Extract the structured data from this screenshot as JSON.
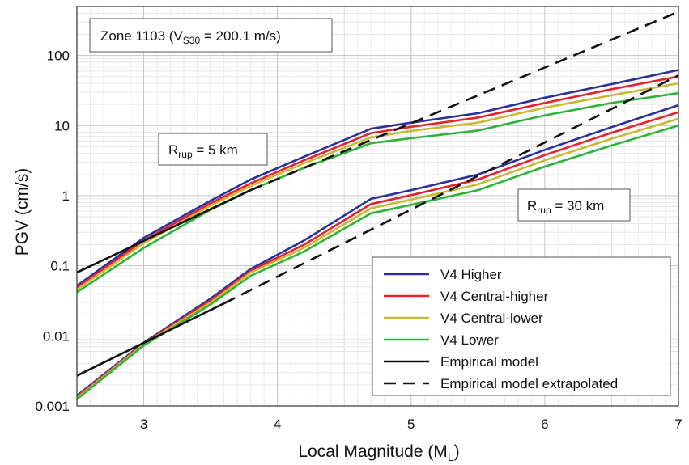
{
  "chart_data": {
    "type": "line",
    "xlabel": "Local Magnitude (M",
    "xlabel_sub": "L",
    "xlabel_tail": ")",
    "ylabel": "PGV (cm/s)",
    "xlim": [
      2.5,
      7
    ],
    "ylim": [
      0.001,
      500
    ],
    "yscale": "log",
    "grid": true,
    "legend_position": "bottom-right",
    "x_ticks": [
      "3",
      "4",
      "5",
      "6",
      "7"
    ],
    "y_ticks": [
      "0.001",
      "0.01",
      "0.1",
      "1",
      "10",
      "100"
    ],
    "annotations": {
      "zone_prefix": "Zone 1103 (V",
      "zone_sub": "S30",
      "zone_suffix": " = 200.1 m/s)",
      "r5_prefix": "R",
      "r5_sub": "rup",
      "r5_suffix": " = 5 km",
      "r30_prefix": "R",
      "r30_sub": "rup",
      "r30_suffix": " = 30 km"
    },
    "series": [
      {
        "name": "V4 Higher",
        "color": "#2b2f9e",
        "style": "solid",
        "curves": [
          {
            "group": "Rrup = 5 km",
            "x": [
              2.5,
              3.0,
              3.5,
              3.8,
              4.2,
              4.7,
              5.0,
              5.5,
              6.0,
              6.5,
              7.0
            ],
            "y": [
              0.052,
              0.25,
              0.85,
              1.7,
              3.6,
              9.0,
              11,
              15,
              25,
              39,
              62
            ]
          },
          {
            "group": "Rrup = 30 km",
            "x": [
              2.5,
              3.0,
              3.5,
              3.8,
              4.2,
              4.7,
              5.0,
              5.5,
              6.0,
              6.5,
              7.0
            ],
            "y": [
              0.0014,
              0.008,
              0.034,
              0.09,
              0.23,
              0.9,
              1.2,
              2.0,
              4.5,
              9.5,
              19.5
            ]
          }
        ]
      },
      {
        "name": "V4 Central-higher",
        "color": "#e8212b",
        "style": "solid",
        "curves": [
          {
            "group": "Rrup = 5 km",
            "x": [
              2.5,
              3.0,
              3.5,
              3.8,
              4.2,
              4.7,
              5.0,
              5.5,
              6.0,
              6.5,
              7.0
            ],
            "y": [
              0.049,
              0.23,
              0.78,
              1.5,
              3.2,
              7.8,
              9.6,
              13,
              21,
              33,
              50
            ]
          },
          {
            "group": "Rrup = 30 km",
            "x": [
              2.5,
              3.0,
              3.5,
              3.8,
              4.2,
              4.7,
              5.0,
              5.5,
              6.0,
              6.5,
              7.0
            ],
            "y": [
              0.00135,
              0.0078,
              0.032,
              0.085,
              0.2,
              0.76,
              1.02,
              1.7,
              3.8,
              7.9,
              15.5
            ]
          }
        ]
      },
      {
        "name": "V4 Central-lower",
        "color": "#c8b933",
        "style": "solid",
        "curves": [
          {
            "group": "Rrup = 5 km",
            "x": [
              2.5,
              3.0,
              3.5,
              3.8,
              4.2,
              4.7,
              5.0,
              5.5,
              6.0,
              6.5,
              7.0
            ],
            "y": [
              0.046,
              0.21,
              0.72,
              1.38,
              2.9,
              6.8,
              8.4,
              11,
              18,
              27,
              40
            ]
          },
          {
            "group": "Rrup = 30 km",
            "x": [
              2.5,
              3.0,
              3.5,
              3.8,
              4.2,
              4.7,
              5.0,
              5.5,
              6.0,
              6.5,
              7.0
            ],
            "y": [
              0.0013,
              0.0076,
              0.03,
              0.08,
              0.18,
              0.66,
              0.88,
              1.45,
              3.2,
              6.5,
              12.5
            ]
          }
        ]
      },
      {
        "name": "V4 Lower",
        "color": "#2eb33a",
        "style": "solid",
        "curves": [
          {
            "group": "Rrup = 5 km",
            "x": [
              2.5,
              3.0,
              3.5,
              3.8,
              4.2,
              4.7,
              5.0,
              5.5,
              6.0,
              6.5,
              7.0
            ],
            "y": [
              0.042,
              0.18,
              0.63,
              1.2,
              2.5,
              5.6,
              6.6,
              8.5,
              14,
              21,
              29
            ]
          },
          {
            "group": "Rrup = 30 km",
            "x": [
              2.5,
              3.0,
              3.5,
              3.8,
              4.2,
              4.7,
              5.0,
              5.5,
              6.0,
              6.5,
              7.0
            ],
            "y": [
              0.00125,
              0.0073,
              0.028,
              0.072,
              0.16,
              0.56,
              0.74,
              1.2,
              2.6,
              5.2,
              10
            ]
          }
        ]
      },
      {
        "name": "Empirical model",
        "color": "#111111",
        "style": "solid",
        "curves": [
          {
            "group": "Rrup = 5 km",
            "x": [
              2.5,
              3.8
            ],
            "y": [
              0.08,
              1.2
            ]
          },
          {
            "group": "Rrup = 30 km",
            "x": [
              2.5,
              3.6
            ],
            "y": [
              0.0027,
              0.029
            ]
          }
        ]
      },
      {
        "name": "Empirical model extrapolated",
        "color": "#111111",
        "style": "dashed",
        "curves": [
          {
            "group": "Rrup = 5 km",
            "x": [
              3.8,
              7.0
            ],
            "y": [
              1.2,
              420
            ]
          },
          {
            "group": "Rrup = 30 km",
            "x": [
              3.6,
              7.0
            ],
            "y": [
              0.029,
              52
            ]
          }
        ]
      }
    ]
  }
}
